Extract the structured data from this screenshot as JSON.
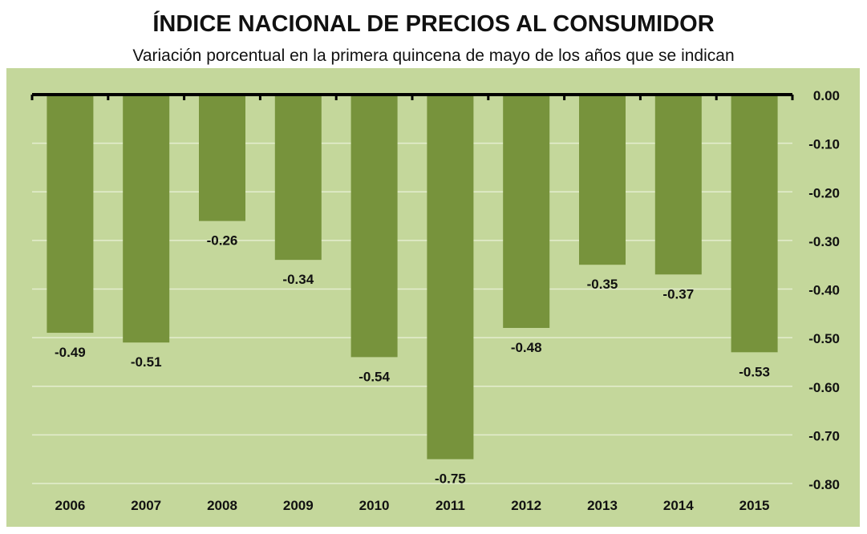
{
  "chart_data": {
    "type": "bar",
    "title": "ÍNDICE NACIONAL DE PRECIOS AL CONSUMIDOR",
    "subtitle": "Variación porcentual en la primera quincena de mayo de los años que se indican",
    "categories": [
      "2006",
      "2007",
      "2008",
      "2009",
      "2010",
      "2011",
      "2012",
      "2013",
      "2014",
      "2015"
    ],
    "values": [
      -0.49,
      -0.51,
      -0.26,
      -0.34,
      -0.54,
      -0.75,
      -0.48,
      -0.35,
      -0.37,
      -0.53
    ],
    "data_labels": [
      "-0.49",
      "-0.51",
      "-0.26",
      "-0.34",
      "-0.54",
      "-0.75",
      "-0.48",
      "-0.35",
      "-0.37",
      "-0.53"
    ],
    "yticks": [
      "0.00",
      "-0.10",
      "-0.20",
      "-0.30",
      "-0.40",
      "-0.50",
      "-0.60",
      "-0.70",
      "-0.80"
    ],
    "ylim": [
      -0.8,
      0
    ],
    "y_axis_position": "right",
    "grid": true,
    "legend": "none",
    "colors": {
      "bar": "#77933c",
      "plot_background": "#c4d79b",
      "grid": "#e4edcf",
      "axis": "#000000"
    }
  }
}
